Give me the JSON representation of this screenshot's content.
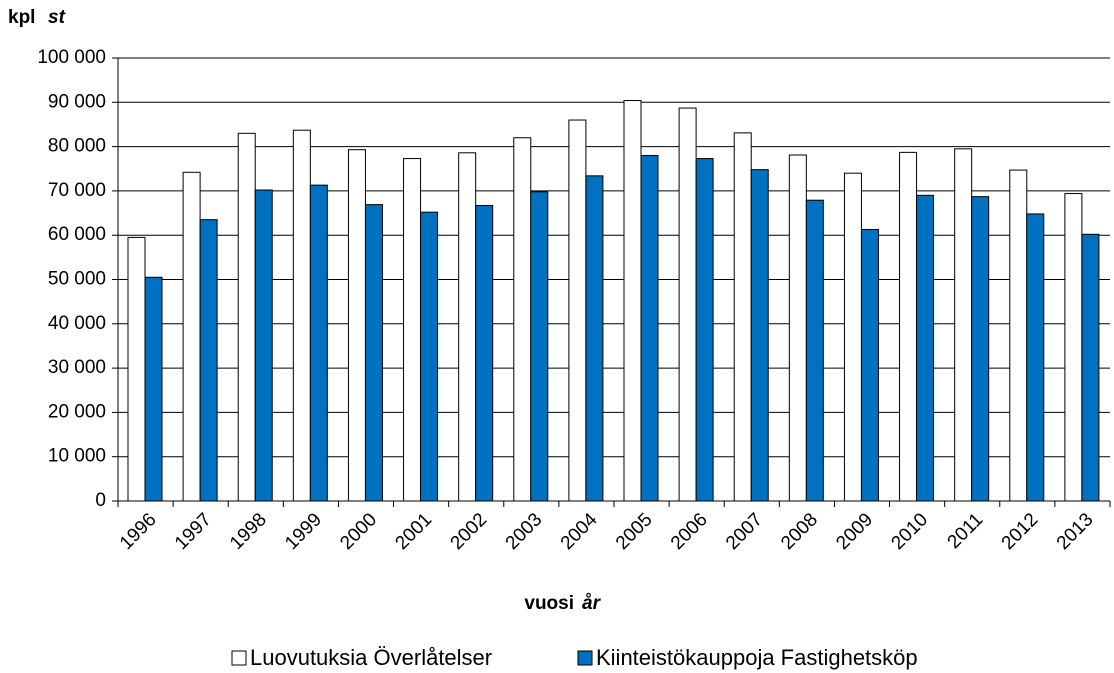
{
  "chart_data": {
    "type": "bar",
    "ylabel": "kpl",
    "ylabel_italic": "st",
    "xlabel": "vuosi",
    "xlabel_italic": "år",
    "categories": [
      "1996",
      "1997",
      "1998",
      "1999",
      "2000",
      "2001",
      "2002",
      "2003",
      "2004",
      "2005",
      "2006",
      "2007",
      "2008",
      "2009",
      "2010",
      "2011",
      "2012",
      "2013"
    ],
    "series": [
      {
        "name": "Luovutuksia Överlåtelser",
        "color": "#ffffff",
        "values": [
          59500,
          74200,
          83000,
          83700,
          79300,
          77300,
          78600,
          82000,
          86000,
          90400,
          88700,
          83100,
          78100,
          74000,
          78700,
          79500,
          74700,
          69400
        ]
      },
      {
        "name": "Kiinteistökauppoja Fastighetsköp",
        "color": "#0070c0",
        "values": [
          50500,
          63500,
          70200,
          71300,
          66900,
          65200,
          66700,
          69800,
          73400,
          78000,
          77300,
          74800,
          67900,
          61300,
          69000,
          68700,
          64800,
          60200
        ]
      }
    ],
    "ylim": [
      0,
      100000
    ],
    "yticks": [
      0,
      {
        "value": 10000,
        "label": "10 000"
      },
      {
        "value": 20000,
        "label": "20 000"
      },
      {
        "value": 30000,
        "label": "30 000"
      },
      {
        "value": 40000,
        "label": "40 000"
      },
      {
        "value": 50000,
        "label": "50 000"
      },
      {
        "value": 60000,
        "label": "60 000"
      },
      {
        "value": 70000,
        "label": "70 000"
      },
      {
        "value": 80000,
        "label": "80 000"
      },
      {
        "value": 90000,
        "label": "90 000"
      },
      {
        "value": 100000,
        "label": "100 000"
      }
    ],
    "grid": true,
    "legend": "bottom"
  }
}
